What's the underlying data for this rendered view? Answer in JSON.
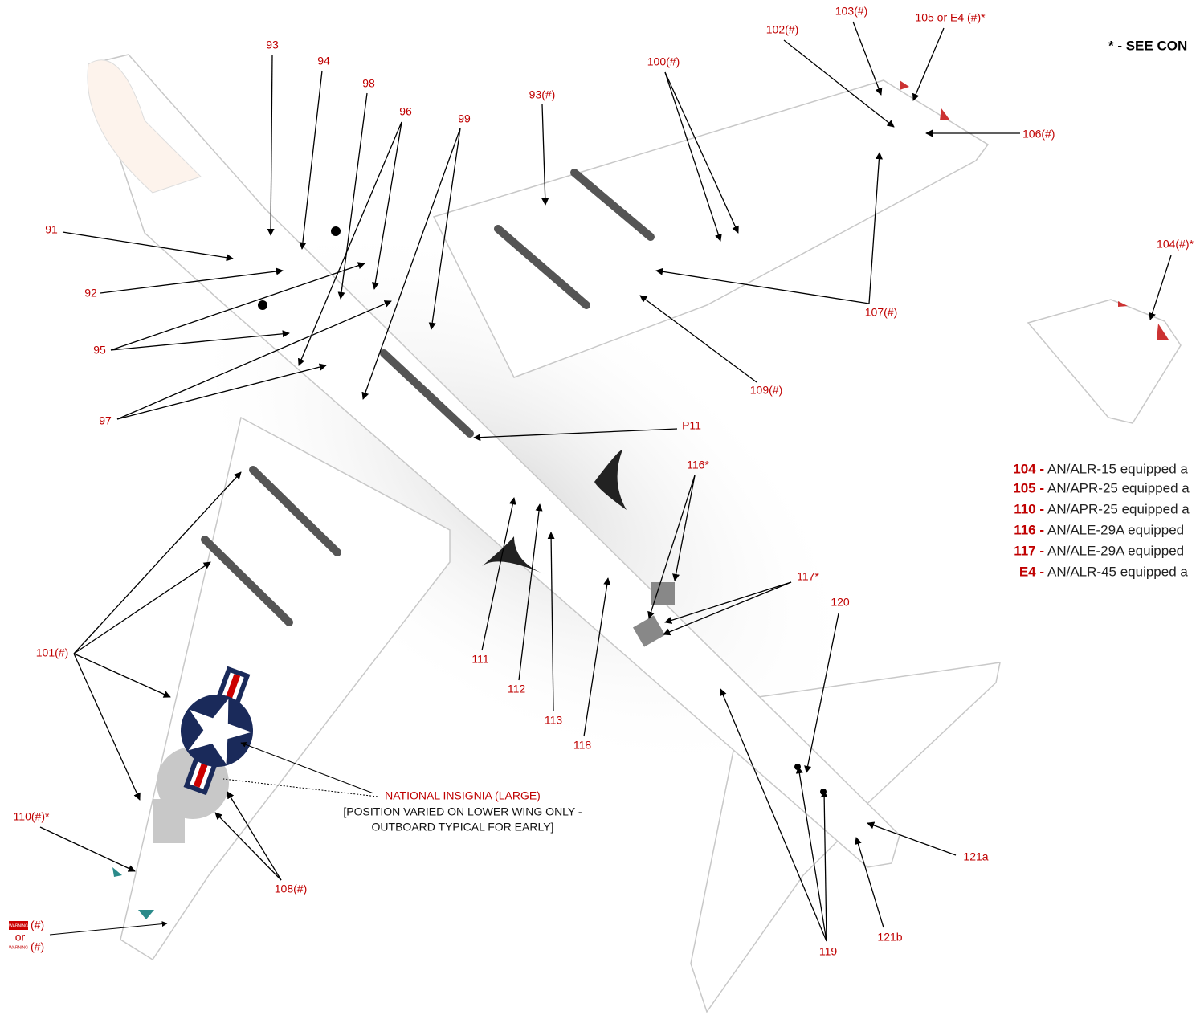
{
  "note_header": "* - SEE CON",
  "callouts": [
    {
      "label": "93"
    },
    {
      "label": "94"
    },
    {
      "label": "98"
    },
    {
      "label": "96"
    },
    {
      "label": "99"
    },
    {
      "label": "93(#)"
    },
    {
      "label": "100(#)"
    },
    {
      "label": "102(#)"
    },
    {
      "label": "103(#)"
    },
    {
      "label": "105 or E4 (#)*"
    },
    {
      "label": "106(#)"
    },
    {
      "label": "91"
    },
    {
      "label": "92"
    },
    {
      "label": "95"
    },
    {
      "label": "97"
    },
    {
      "label": "107(#)"
    },
    {
      "label": "109(#)"
    },
    {
      "label": "P11"
    },
    {
      "label": "116*"
    },
    {
      "label": "117*"
    },
    {
      "label": "120"
    },
    {
      "label": "101(#)"
    },
    {
      "label": "111"
    },
    {
      "label": "112"
    },
    {
      "label": "113"
    },
    {
      "label": "118"
    },
    {
      "label": "110(#)*"
    },
    {
      "label": "108(#)"
    },
    {
      "label": "119"
    },
    {
      "label": "121a"
    },
    {
      "label": "121b"
    },
    {
      "label": "104(#)*"
    }
  ],
  "insignia": {
    "title": "NATIONAL INSIGNIA (LARGE)",
    "lines": [
      "[POSITION VARIED ON LOWER WING ONLY -",
      "OUTBOARD TYPICAL FOR EARLY]"
    ]
  },
  "warning": {
    "tag": "WARNING",
    "mark": "(#)",
    "or": "or"
  },
  "legend": [
    {
      "code": "104 -",
      "text": "AN/ALR-15 equipped a"
    },
    {
      "code": "105 -",
      "text": "AN/APR-25 equipped a"
    },
    {
      "code": "110 -",
      "text": "AN/APR-25 equipped a"
    },
    {
      "code": "116 -",
      "text": "AN/ALE-29A equipped"
    },
    {
      "code": "117 -",
      "text": "AN/ALE-29A equipped"
    },
    {
      "code": "E4 -",
      "text": "AN/ALR-45 equipped a"
    }
  ]
}
